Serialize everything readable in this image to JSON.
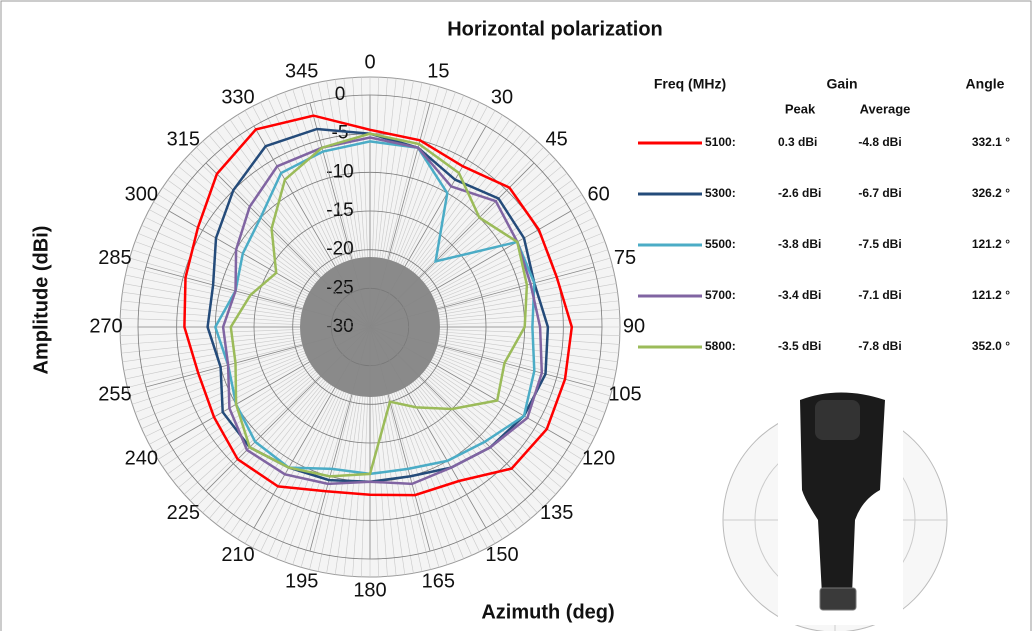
{
  "chart_data": {
    "type": "polar",
    "title": "Horizontal polarization",
    "y_label": "Amplitude (dBi)",
    "x_label": "Azimuth (deg)",
    "x": [
      0,
      15,
      30,
      45,
      60,
      75,
      90,
      105,
      120,
      135,
      150,
      165,
      180,
      195,
      210,
      225,
      240,
      255,
      270,
      285,
      300,
      315,
      330,
      345
    ],
    "xticks": [
      0,
      15,
      30,
      45,
      60,
      75,
      90,
      105,
      120,
      135,
      150,
      165,
      180,
      195,
      210,
      225,
      240,
      255,
      270,
      285,
      300,
      315,
      330,
      345
    ],
    "ylim": [
      -30,
      0
    ],
    "yticks": [
      -30,
      -25,
      -20,
      -15,
      -10,
      -5,
      0
    ],
    "grid": true,
    "series": [
      {
        "name": "5100:",
        "color": "#ff0000",
        "values": [
          -4.5,
          -5,
          -6,
          -4.5,
          -4.8,
          -5,
          -3.9,
          -3.9,
          -3.6,
          -4.1,
          -7,
          -7.5,
          -8.3,
          -8,
          -6.2,
          -5.8,
          -6.7,
          -7,
          -6,
          -5.3,
          -4.3,
          -2,
          -0.5,
          -1.7
        ]
      },
      {
        "name": "5300:",
        "color": "#244b7a",
        "values": [
          -5,
          -6,
          -8,
          -6.5,
          -7,
          -8,
          -7,
          -6.5,
          -7,
          -8,
          -9,
          -10,
          -10,
          -9.5,
          -9,
          -8,
          -8,
          -10,
          -9,
          -9,
          -7,
          -5,
          -3,
          -3.5
        ]
      },
      {
        "name": "5500:",
        "color": "#4bacc6",
        "values": [
          -6,
          -6,
          -10,
          -18,
          -8,
          -8,
          -9,
          -8,
          -7,
          -9,
          -10,
          -11,
          -11,
          -11,
          -9,
          -9,
          -10,
          -11,
          -10,
          -12,
          -11,
          -10,
          -7,
          -6.5
        ]
      },
      {
        "name": "5700:",
        "color": "#8064a2",
        "values": [
          -5.5,
          -6,
          -9,
          -7,
          -8,
          -8.5,
          -8,
          -7,
          -6.5,
          -8,
          -9,
          -9,
          -10,
          -9,
          -8,
          -7.5,
          -9,
          -11,
          -11,
          -12,
          -10,
          -8,
          -6,
          -6
        ]
      },
      {
        "name": "5800:",
        "color": "#9bbb59",
        "values": [
          -5,
          -5.5,
          -7,
          -10,
          -8,
          -9,
          -10,
          -12,
          -11,
          -15,
          -18,
          -20,
          -11,
          -10,
          -9,
          -8,
          -10,
          -12,
          -12,
          -14,
          -16,
          -12,
          -8,
          -6
        ]
      }
    ]
  },
  "legend_table": {
    "headers": [
      "Freq (MHz)",
      "Gain",
      "Angle"
    ],
    "subheaders": [
      "Peak",
      "Average"
    ],
    "rows": [
      [
        "0.3 dBi",
        "-4.8 dBi",
        "332.1 °"
      ],
      [
        "-2.6 dBi",
        "-6.7 dBi",
        "326.2 °"
      ],
      [
        "-3.8 dBi",
        "-7.5 dBi",
        "121.2 °"
      ],
      [
        "-3.4 dBi",
        "-7.1 dBi",
        "121.2 °"
      ],
      [
        "-3.5 dBi",
        "-7.8 dBi",
        "352.0 °"
      ]
    ]
  }
}
